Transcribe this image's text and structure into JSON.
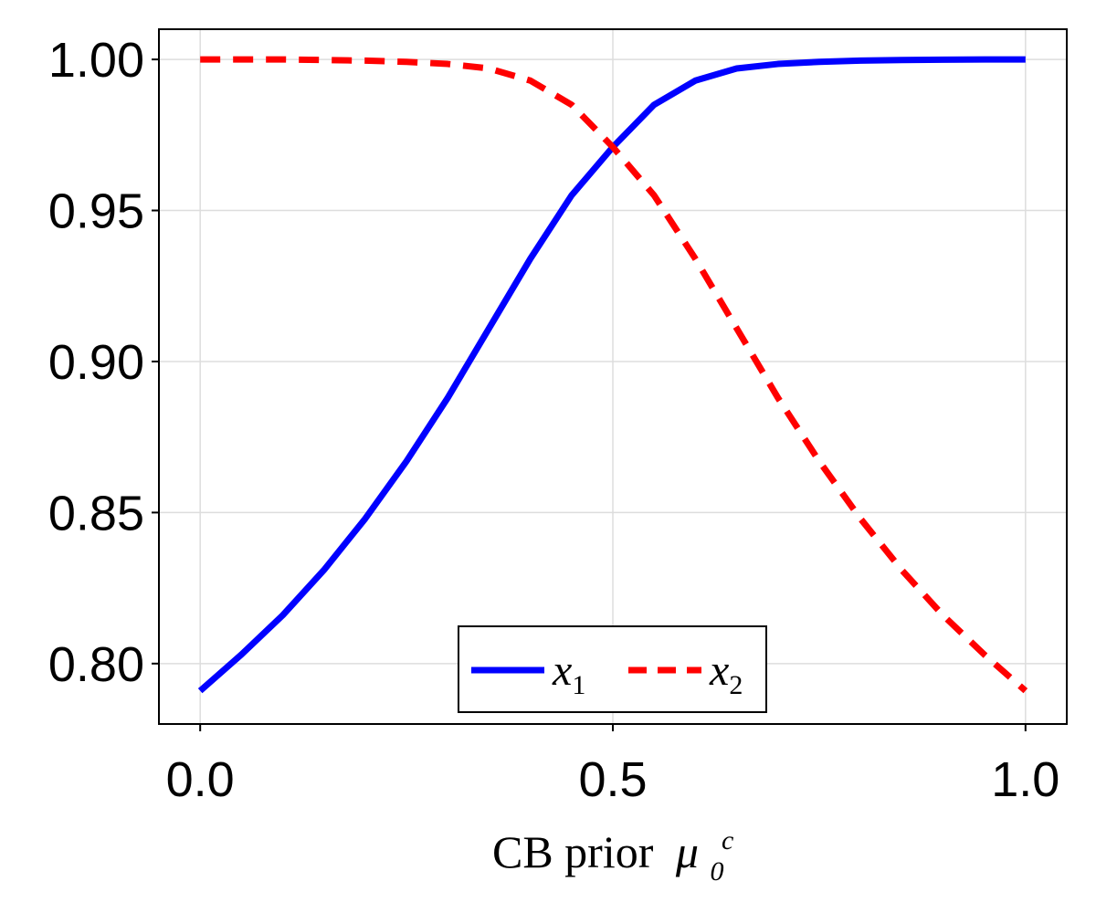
{
  "chart_data": {
    "type": "line",
    "title": "",
    "xlabel": "CB prior",
    "xlabel_symbol": "μ",
    "xlabel_symbol_sub": "0",
    "xlabel_symbol_sup": "c",
    "ylabel": "",
    "xlim": [
      -0.05,
      1.05
    ],
    "ylim": [
      0.78,
      1.01
    ],
    "x_ticks": [
      0.0,
      0.5,
      1.0
    ],
    "x_tick_labels": [
      "0.0",
      "0.5",
      "1.0"
    ],
    "y_ticks": [
      0.8,
      0.85,
      0.9,
      0.95,
      1.0
    ],
    "y_tick_labels": [
      "0.80",
      "0.85",
      "0.90",
      "0.95",
      "1.00"
    ],
    "grid": true,
    "legend_position": "bottom-center",
    "series": [
      {
        "name": "x",
        "name_sub": "1",
        "color": "#0000ff",
        "style": "solid",
        "x": [
          0.0,
          0.05,
          0.1,
          0.15,
          0.2,
          0.25,
          0.3,
          0.35,
          0.4,
          0.45,
          0.5,
          0.55,
          0.6,
          0.65,
          0.7,
          0.75,
          0.8,
          0.85,
          0.9,
          0.95,
          1.0
        ],
        "y": [
          0.791,
          0.803,
          0.816,
          0.831,
          0.848,
          0.867,
          0.888,
          0.911,
          0.934,
          0.955,
          0.971,
          0.985,
          0.993,
          0.997,
          0.9985,
          0.9992,
          0.9996,
          0.9998,
          0.9999,
          1.0,
          1.0
        ]
      },
      {
        "name": "x",
        "name_sub": "2",
        "color": "#ff0000",
        "style": "dashed",
        "x": [
          0.0,
          0.05,
          0.1,
          0.15,
          0.2,
          0.25,
          0.3,
          0.35,
          0.4,
          0.45,
          0.5,
          0.55,
          0.6,
          0.65,
          0.7,
          0.75,
          0.8,
          0.85,
          0.9,
          0.95,
          1.0
        ],
        "y": [
          1.0,
          1.0,
          1.0,
          0.9998,
          0.9996,
          0.9992,
          0.9985,
          0.997,
          0.993,
          0.985,
          0.971,
          0.955,
          0.934,
          0.911,
          0.888,
          0.867,
          0.848,
          0.831,
          0.816,
          0.803,
          0.791
        ]
      }
    ]
  }
}
